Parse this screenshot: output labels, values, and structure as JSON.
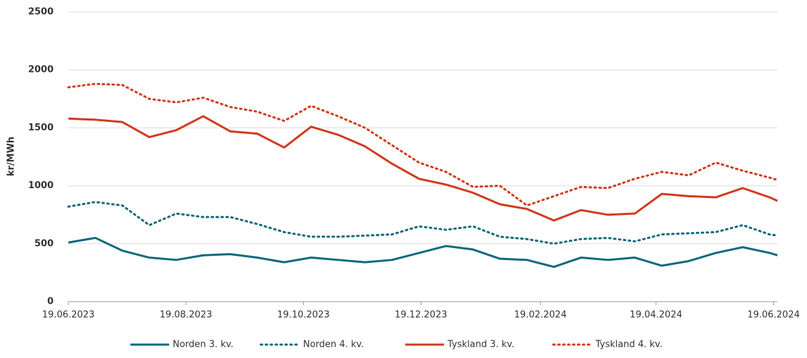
{
  "chart_data": {
    "type": "line",
    "y_label": "kr/MWh",
    "x": [
      "2023-06-19",
      "2023-07-03",
      "2023-07-17",
      "2023-07-31",
      "2023-08-14",
      "2023-08-28",
      "2023-09-11",
      "2023-09-25",
      "2023-10-09",
      "2023-10-23",
      "2023-11-06",
      "2023-11-20",
      "2023-12-04",
      "2023-12-18",
      "2024-01-01",
      "2024-01-15",
      "2024-01-29",
      "2024-02-12",
      "2024-02-26",
      "2024-03-11",
      "2024-03-25",
      "2024-04-08",
      "2024-04-22",
      "2024-05-06",
      "2024-05-20",
      "2024-06-03",
      "2024-06-17",
      "2024-06-21"
    ],
    "xlim": [
      "2023-06-19",
      "2024-06-21"
    ],
    "xticks": [
      {
        "value": "2023-06-19",
        "label": "19.06.2023"
      },
      {
        "value": "2023-08-19",
        "label": "19.08.2023"
      },
      {
        "value": "2023-10-19",
        "label": "19.10.2023"
      },
      {
        "value": "2023-12-19",
        "label": "19.12.2023"
      },
      {
        "value": "2024-02-19",
        "label": "19.02.2024"
      },
      {
        "value": "2024-04-19",
        "label": "19.04.2024"
      },
      {
        "value": "2024-06-19",
        "label": "19.06.2024"
      }
    ],
    "ylim": [
      0,
      2500
    ],
    "yticks": [
      0,
      500,
      1000,
      1500,
      2000,
      2500
    ],
    "grid": true,
    "legend": "bottom",
    "series": [
      {
        "name": "Norden 3. kv.",
        "color": "#0f6a7d",
        "dashed": false,
        "values": [
          510,
          550,
          440,
          380,
          360,
          400,
          410,
          380,
          340,
          380,
          360,
          340,
          360,
          420,
          480,
          450,
          370,
          360,
          300,
          380,
          360,
          380,
          310,
          350,
          420,
          470,
          420,
          400
        ]
      },
      {
        "name": "Norden 4. kv.",
        "color": "#0f6a7d",
        "dashed": true,
        "values": [
          820,
          860,
          830,
          660,
          760,
          730,
          730,
          670,
          600,
          560,
          560,
          570,
          580,
          650,
          620,
          650,
          560,
          540,
          500,
          540,
          550,
          520,
          580,
          590,
          600,
          660,
          580,
          570
        ]
      },
      {
        "name": "Tyskland 3. kv.",
        "color": "#d23b1e",
        "dashed": false,
        "values": [
          1580,
          1570,
          1550,
          1420,
          1480,
          1600,
          1470,
          1450,
          1330,
          1510,
          1440,
          1340,
          1190,
          1060,
          1010,
          940,
          840,
          800,
          700,
          790,
          750,
          760,
          930,
          910,
          900,
          980,
          900,
          870
        ]
      },
      {
        "name": "Tyskland 4. kv.",
        "color": "#d23b1e",
        "dashed": true,
        "values": [
          1850,
          1880,
          1870,
          1750,
          1720,
          1760,
          1680,
          1640,
          1560,
          1690,
          1600,
          1500,
          1350,
          1200,
          1120,
          990,
          1000,
          830,
          910,
          990,
          980,
          1060,
          1120,
          1090,
          1200,
          1130,
          1070,
          1050
        ]
      }
    ]
  }
}
